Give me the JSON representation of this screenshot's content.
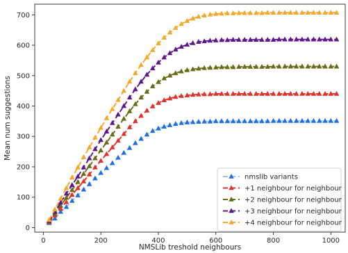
{
  "chart_data": {
    "type": "line",
    "title": "",
    "xlabel": "NMSLib treshold neighbours",
    "ylabel": "Mean num suggestions",
    "xlim": [
      -30,
      1050
    ],
    "ylim": [
      -15,
      735
    ],
    "xticks": [
      0,
      200,
      400,
      600,
      800,
      1000
    ],
    "yticks": [
      0,
      100,
      200,
      300,
      400,
      500,
      600,
      700
    ],
    "grid": false,
    "legend_position": "lower-right",
    "marker": "triangle",
    "linestyle": "dashed",
    "x": [
      20,
      40,
      60,
      80,
      100,
      120,
      140,
      160,
      180,
      200,
      220,
      240,
      260,
      280,
      300,
      320,
      340,
      360,
      380,
      400,
      420,
      440,
      460,
      480,
      500,
      520,
      540,
      560,
      580,
      600,
      620,
      640,
      660,
      680,
      700,
      720,
      740,
      760,
      780,
      800,
      820,
      840,
      860,
      880,
      900,
      920,
      940,
      960,
      980,
      1000,
      1020
    ],
    "series": [
      {
        "name": "nmslib variants",
        "color": "#1f6fe5",
        "line_color": "#9ec5e8",
        "values": [
          15,
          30,
          52,
          68,
          88,
          106,
          125,
          143,
          162,
          180,
          196,
          212,
          230,
          246,
          262,
          278,
          292,
          306,
          318,
          326,
          332,
          337,
          341,
          344,
          346,
          347,
          348,
          349,
          349,
          350,
          350,
          350,
          350,
          350,
          350,
          350,
          350,
          350,
          350,
          351,
          351,
          351,
          351,
          351,
          351,
          351,
          351,
          351,
          351,
          351,
          351
        ]
      },
      {
        "name": "+1 neighbour for neighbour",
        "color": "#e2302b",
        "line_color": "#e2302b",
        "values": [
          18,
          40,
          62,
          84,
          108,
          130,
          152,
          175,
          198,
          220,
          242,
          264,
          286,
          308,
          330,
          350,
          368,
          385,
          399,
          410,
          419,
          425,
          430,
          433,
          435,
          437,
          438,
          439,
          439,
          440,
          440,
          440,
          440,
          440,
          440,
          440,
          440,
          440,
          440,
          440,
          440,
          440,
          440,
          440,
          440,
          440,
          440,
          440,
          440,
          440,
          440
        ]
      },
      {
        "name": "+2 neighbour for neighbour",
        "color": "#6b6b13",
        "line_color": "#6b6b13",
        "values": [
          20,
          45,
          72,
          98,
          124,
          150,
          177,
          202,
          228,
          254,
          280,
          306,
          332,
          358,
          383,
          406,
          428,
          447,
          465,
          479,
          491,
          500,
          508,
          514,
          518,
          521,
          523,
          525,
          526,
          527,
          528,
          528,
          528,
          529,
          529,
          529,
          529,
          529,
          529,
          530,
          530,
          530,
          530,
          530,
          530,
          530,
          530,
          530,
          530,
          530,
          530
        ]
      },
      {
        "name": "+3 neighbour for neighbour",
        "color": "#5e158f",
        "line_color": "#5e158f",
        "values": [
          22,
          52,
          82,
          112,
          140,
          168,
          198,
          228,
          258,
          288,
          316,
          344,
          372,
          400,
          428,
          455,
          480,
          503,
          524,
          543,
          560,
          574,
          586,
          595,
          602,
          607,
          611,
          613,
          615,
          616,
          617,
          617,
          618,
          618,
          618,
          618,
          618,
          618,
          618,
          618,
          619,
          619,
          619,
          619,
          619,
          619,
          619,
          619,
          619,
          619,
          619
        ]
      },
      {
        "name": "+4 neighbour for neighbour",
        "color": "#f5a829",
        "line_color": "#f5a829",
        "values": [
          25,
          60,
          95,
          130,
          165,
          198,
          232,
          264,
          296,
          328,
          360,
          390,
          420,
          450,
          480,
          508,
          535,
          560,
          584,
          606,
          625,
          642,
          657,
          670,
          680,
          688,
          694,
          698,
          701,
          703,
          704,
          705,
          705,
          706,
          706,
          706,
          706,
          706,
          707,
          707,
          707,
          707,
          707,
          707,
          707,
          707,
          707,
          707,
          707,
          707,
          707
        ]
      }
    ]
  }
}
